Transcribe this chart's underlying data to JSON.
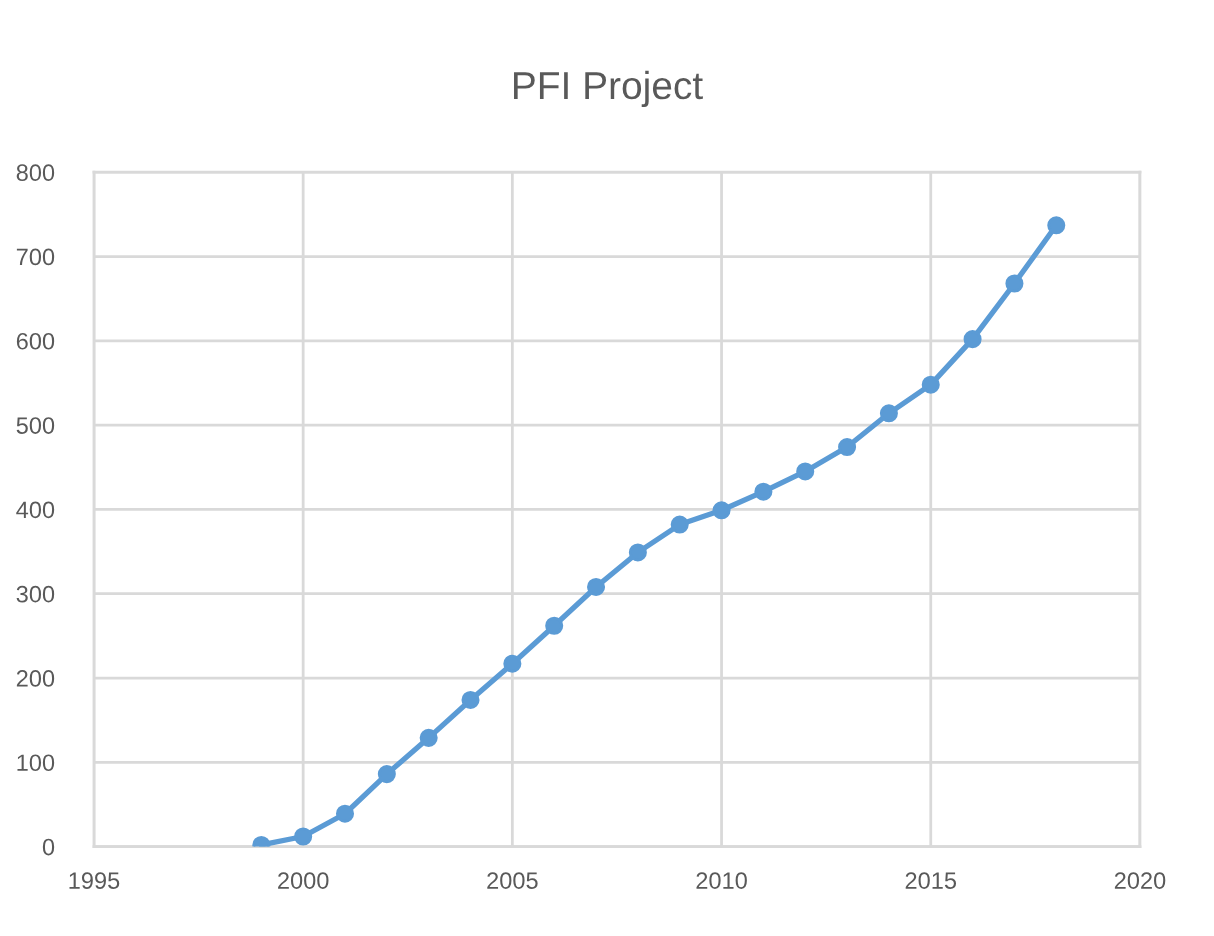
{
  "chart_data": {
    "type": "line",
    "title": "PFI Project",
    "x": [
      1999,
      2000,
      2001,
      2002,
      2003,
      2004,
      2005,
      2006,
      2007,
      2008,
      2009,
      2010,
      2011,
      2012,
      2013,
      2014,
      2015,
      2016,
      2017,
      2018
    ],
    "series": [
      {
        "color": "#5b9bd5",
        "values": [
          2,
          12,
          39,
          86,
          129,
          174,
          217,
          262,
          308,
          349,
          382,
          399,
          421,
          445,
          474,
          514,
          548,
          602,
          668,
          737
        ]
      }
    ],
    "xlim": [
      1995,
      2020
    ],
    "xticks": [
      1995,
      2000,
      2005,
      2010,
      2015,
      2020
    ],
    "ylim": [
      0,
      800
    ],
    "yticks": [
      0,
      100,
      200,
      300,
      400,
      500,
      600,
      700,
      800
    ],
    "grid": true,
    "marker": "circle",
    "line_style": "solid"
  }
}
